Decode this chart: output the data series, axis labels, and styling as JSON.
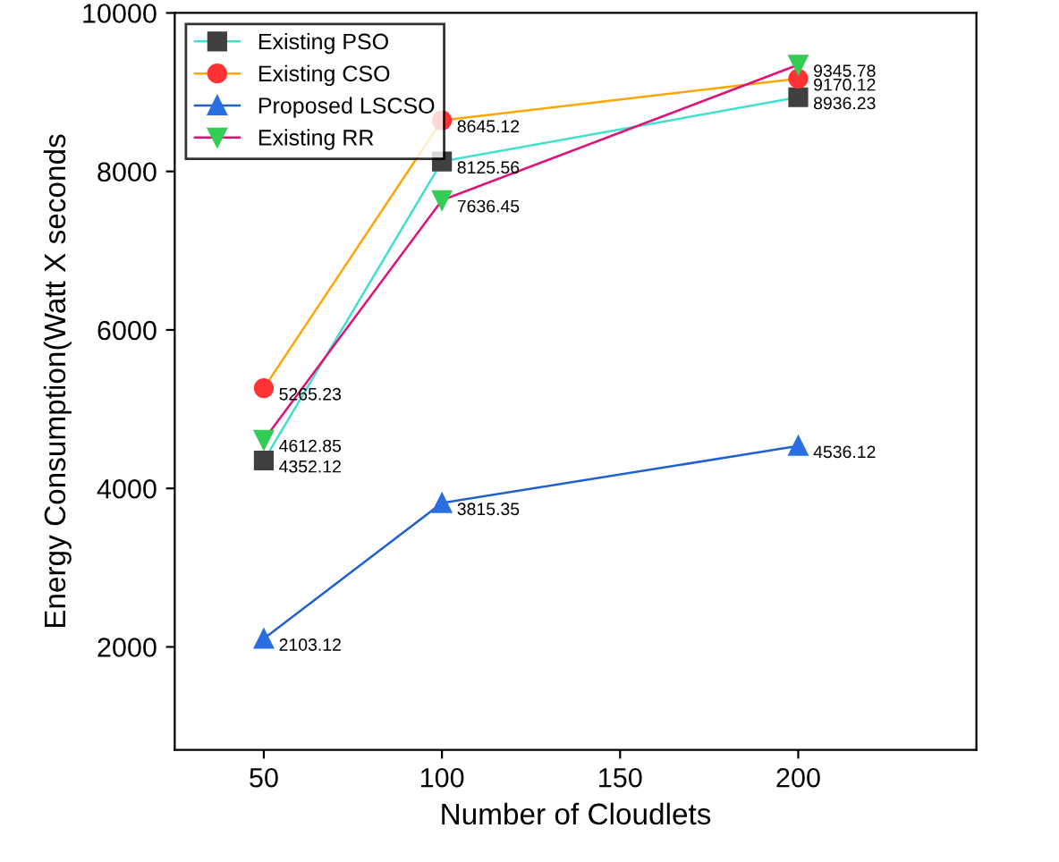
{
  "chart_data": {
    "type": "line",
    "xlabel": "Number of Cloudlets",
    "ylabel": "Energy Consumption(Watt X seconds",
    "x": [
      50,
      100,
      200
    ],
    "xlim": [
      25,
      250
    ],
    "xticks": [
      50,
      100,
      150,
      200
    ],
    "ylim": [
      700,
      10000
    ],
    "yticks": [
      2000,
      4000,
      6000,
      8000,
      10000
    ],
    "grid": false,
    "legend": "top left",
    "data_labels": true,
    "line_style": "solid",
    "series": [
      {
        "name": "Existing PSO",
        "color": "#40e0d0",
        "colors": [
          "#404040",
          "#404040",
          "#404040"
        ],
        "marker": "square",
        "values": [
          4352.12,
          8125.56,
          8936.23
        ]
      },
      {
        "name": "Existing CSO",
        "color": "#ffa500",
        "colors": [
          "#ff3333",
          "#ff3333",
          "#ff3333"
        ],
        "marker": "circle",
        "values": [
          5265.23,
          8645.12,
          9170.12
        ]
      },
      {
        "name": "Proposed LSCSO",
        "color": "#1f5fd0",
        "colors": [
          "#2a6fe0",
          "#2a6fe0",
          "#2a6fe0"
        ],
        "marker": "triangle",
        "values": [
          2103.12,
          3815.35,
          4536.12
        ]
      },
      {
        "name": "Existing RR",
        "color": "#e0107a",
        "colors": [
          "#33cc55",
          "#33cc55",
          "#33cc55"
        ],
        "marker": "triangle_down",
        "values": [
          4612.85,
          7636.45,
          9345.78
        ]
      }
    ]
  }
}
